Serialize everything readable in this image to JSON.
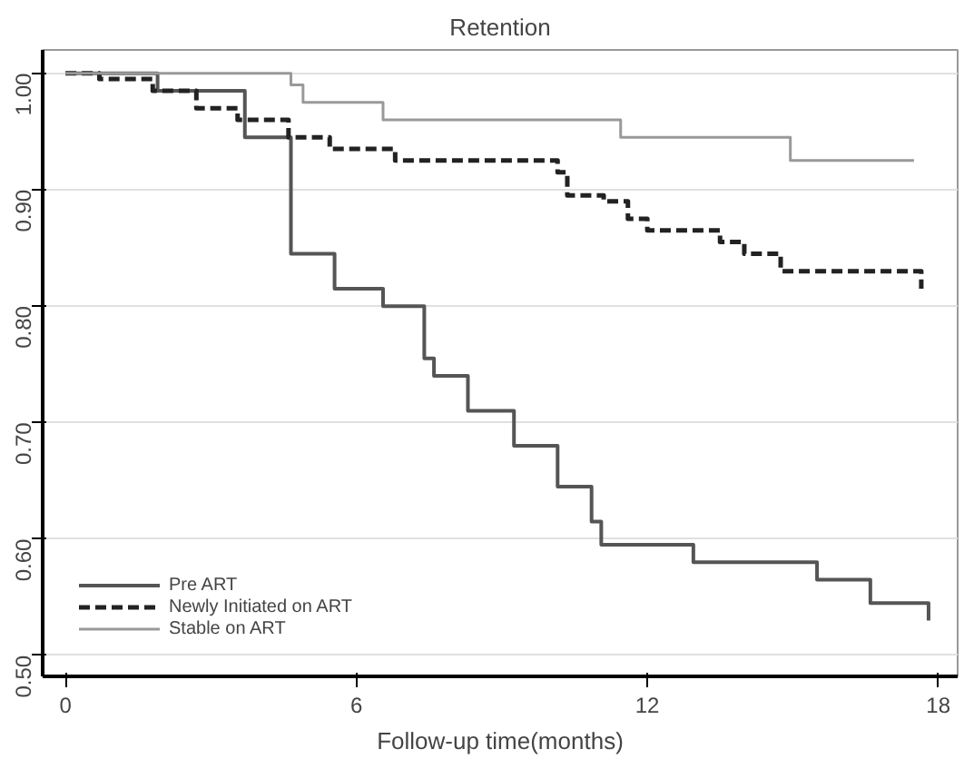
{
  "chart_data": {
    "type": "step",
    "title": "Retention",
    "xlabel": "Follow-up time(months)",
    "xlim": [
      -0.47,
      18.4
    ],
    "xticks": [
      0,
      6,
      12,
      18
    ],
    "ylim": [
      0.482,
      1.02
    ],
    "yticks": [
      {
        "value": 0.5,
        "label": "0.50"
      },
      {
        "value": 0.6,
        "label": "0.60"
      },
      {
        "value": 0.7,
        "label": "0.70"
      },
      {
        "value": 0.8,
        "label": "0.80"
      },
      {
        "value": 0.9,
        "label": "0.90"
      },
      {
        "value": 1.0,
        "label": "1.00"
      }
    ],
    "grid": "y",
    "legend": "bottom left",
    "marker": "none",
    "series": [
      {
        "name": "Pre ART",
        "color": "#555555",
        "line_style": "solid",
        "x": [
          0,
          1.9,
          3.7,
          4.65,
          5.55,
          6.55,
          7.4,
          7.6,
          8.3,
          9.25,
          10.15,
          10.85,
          11.05,
          12.95,
          15.5,
          16.6,
          17.8
        ],
        "values": [
          1.0,
          0.985,
          0.945,
          0.845,
          0.815,
          0.8,
          0.755,
          0.74,
          0.71,
          0.68,
          0.645,
          0.615,
          0.595,
          0.58,
          0.565,
          0.545,
          0.53
        ]
      },
      {
        "name": "Newly Initiated on ART",
        "color": "#222222",
        "line_style": "dashed",
        "x": [
          0,
          0.7,
          1.8,
          2.7,
          3.55,
          4.6,
          5.45,
          6.8,
          10.15,
          10.35,
          11.1,
          11.6,
          12.0,
          13.5,
          14.0,
          14.75,
          17.65
        ],
        "values": [
          1.0,
          0.995,
          0.985,
          0.97,
          0.96,
          0.945,
          0.935,
          0.925,
          0.915,
          0.895,
          0.89,
          0.875,
          0.865,
          0.855,
          0.845,
          0.83,
          0.815
        ]
      },
      {
        "name": "Stable on ART",
        "color": "#999999",
        "line_style": "solid",
        "x": [
          0,
          4.65,
          4.9,
          6.55,
          11.45,
          14.95,
          17.5
        ],
        "values": [
          1.0,
          0.99,
          0.975,
          0.96,
          0.945,
          0.925,
          0.925
        ]
      }
    ]
  }
}
